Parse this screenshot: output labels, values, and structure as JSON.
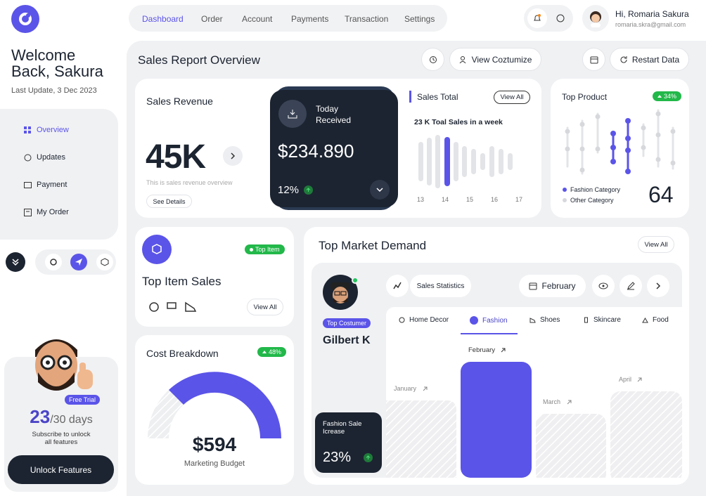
{
  "header": {
    "nav": [
      "Dashboard",
      "Order",
      "Account",
      "Payments",
      "Transaction",
      "Settings"
    ],
    "user_name": "Hi, Romaria Sakura",
    "user_email": "romaria.skra@gmail.com"
  },
  "sidebar": {
    "welcome": [
      "Welcome",
      "Back, Sakura"
    ],
    "last_update": "Last Update, 3 Dec 2023",
    "menu": [
      "Overview",
      "Updates",
      "Payment",
      "My Order"
    ],
    "trial": {
      "badge": "Free Trial",
      "days_used": "23",
      "days_total": "/30 days",
      "note": "Subscribe to unlock all features",
      "button": "Unlock Features"
    }
  },
  "main": {
    "title": "Sales Report Overview",
    "buttons": [
      "View Coztumize",
      "Restart Data"
    ],
    "sales_revenue": {
      "title": "Sales Revenue",
      "value": "45K",
      "caption": "This is sales revenue overview",
      "button": "See Details"
    },
    "today_received": {
      "title": "Today Received",
      "value": "$234.890",
      "change": "12%"
    },
    "sales_total": {
      "title": "Sales Total",
      "button": "View All",
      "subtitle": "23 K Toal Sales in a week",
      "days": [
        "13",
        "14",
        "15",
        "16",
        "17"
      ]
    },
    "top_product": {
      "title": "Top Product",
      "badge": "34%",
      "legend": [
        "Fashion Category",
        "Other Category"
      ],
      "value": "64"
    },
    "top_item_sales": {
      "badge": "Top Item",
      "title": "Top Item Sales",
      "button": "View All"
    },
    "cost_breakdown": {
      "title": "Cost Breakdown",
      "badge": "48%",
      "value": "$594",
      "caption": "Marketing Budget"
    },
    "top_market_demand": {
      "title": "Top Market Demand",
      "button": "View All",
      "customer_badge": "Top Costumer",
      "customer_name": "Gilbert K",
      "stats_button": "Sales Statistics",
      "month": "February",
      "tabs": [
        "Home Decor",
        "Fashion",
        "Shoes",
        "Skincare",
        "Food"
      ],
      "highlight": {
        "title": "Fashion Sale Icrease",
        "value": "23%"
      },
      "months": [
        "January",
        "February",
        "March",
        "April"
      ]
    }
  }
}
